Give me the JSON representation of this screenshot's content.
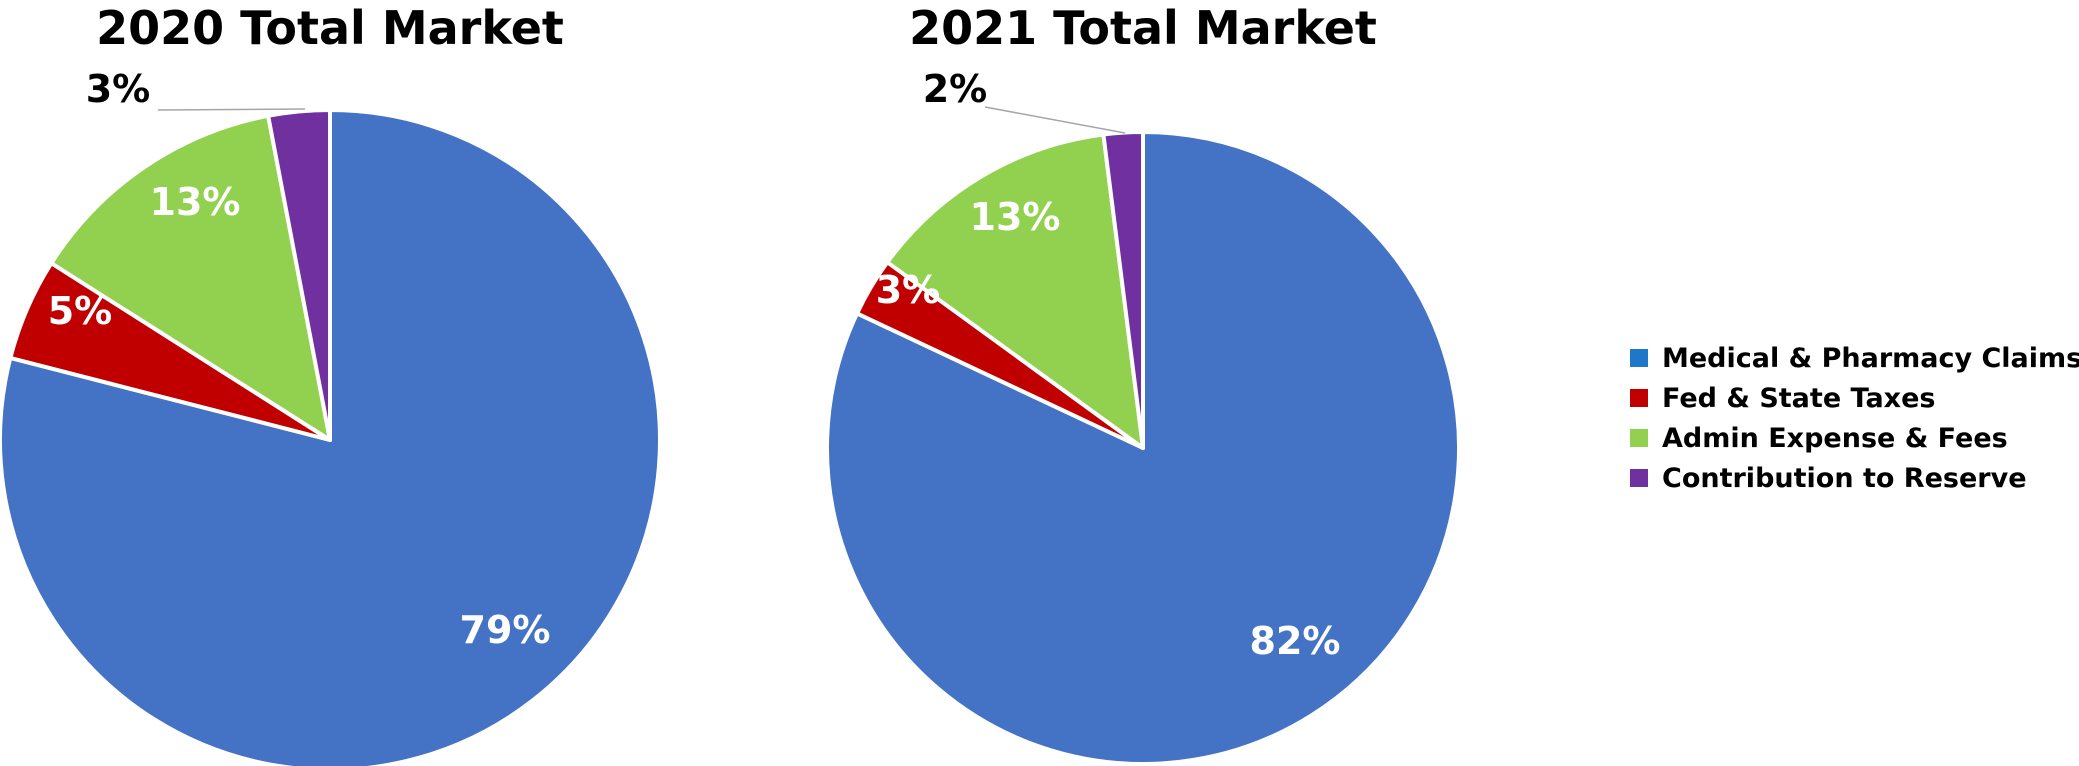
{
  "chart_data": [
    {
      "type": "pie",
      "title": "2020 Total Market",
      "slices": [
        {
          "category": "Medical & Pharmacy Claims",
          "value": 79,
          "label": "79%"
        },
        {
          "category": "Fed & State Taxes",
          "value": 5,
          "label": "5%"
        },
        {
          "category": "Admin Expense & Fees",
          "value": 13,
          "label": "13%"
        },
        {
          "category": "Contribution to Reserve",
          "value": 3,
          "label": "3%"
        }
      ]
    },
    {
      "type": "pie",
      "title": "2021 Total Market",
      "slices": [
        {
          "category": "Medical & Pharmacy Claims",
          "value": 82,
          "label": "82%"
        },
        {
          "category": "Fed & State Taxes",
          "value": 3,
          "label": "3%"
        },
        {
          "category": "Admin Expense & Fees",
          "value": 13,
          "label": "13%"
        },
        {
          "category": "Contribution to Reserve",
          "value": 2,
          "label": "2%"
        }
      ]
    }
  ],
  "legend": {
    "placement": "right",
    "items": [
      {
        "label": "Medical & Pharmacy Claims",
        "color": "#1f77c9"
      },
      {
        "label": "Fed & State Taxes",
        "color": "#c00000"
      },
      {
        "label": "Admin Expense & Fees",
        "color": "#92d050"
      },
      {
        "label": "Contribution to Reserve",
        "color": "#7030a0"
      }
    ]
  },
  "colors": {
    "Medical & Pharmacy Claims": "#4472c4",
    "Fed & State Taxes": "#c00000",
    "Admin Expense & Fees": "#92d050",
    "Contribution to Reserve": "#7030a0"
  }
}
